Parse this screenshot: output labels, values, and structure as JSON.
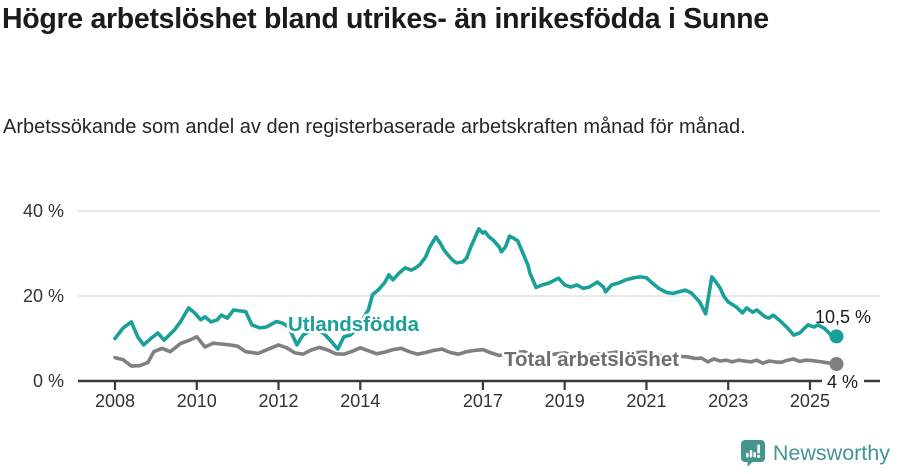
{
  "header": {
    "title": "Högre arbetslöshet bland utrikes- än inrikesfödda i Sunne",
    "subtitle": "Arbetssökande som andel av den registerbaserade arbetskraften månad för månad."
  },
  "footer": {
    "brand": "Newsworthy"
  },
  "colors": {
    "accent_teal": "#18a099",
    "series_gray": "#808083",
    "label_gray": "#6e6e71",
    "brand_teal": "#44948f",
    "axis": "#3a3a3a",
    "gridline": "#d9d9d9",
    "text": "#1b1b1b"
  },
  "chart_data": {
    "type": "line",
    "title": "Högre arbetslöshet bland utrikes- än inrikesfödda i Sunne",
    "subtitle": "Arbetssökande som andel av den registerbaserade arbetskraften månad för månad.",
    "unit": "%",
    "x_ticks": [
      2008,
      2010,
      2012,
      2014,
      2017,
      2019,
      2021,
      2023,
      2025
    ],
    "y_ticks": [
      0,
      20,
      40
    ],
    "y_tick_labels": [
      "0 %",
      "20 %",
      "40 %"
    ],
    "xlim": [
      2007.1,
      2026.7
    ],
    "ylim": [
      0,
      42
    ],
    "grid": "horizontal-only",
    "legend_position": "inline-labels",
    "series": [
      {
        "id": "utlandsfodda",
        "name": "Utlandsfödda",
        "color": "#18a099",
        "end_label": "10,5 %",
        "end_value": 10.5,
        "points": [
          [
            2008.0,
            10.0
          ],
          [
            2008.2,
            12.5
          ],
          [
            2008.4,
            13.9
          ],
          [
            2008.55,
            10.5
          ],
          [
            2008.7,
            8.5
          ],
          [
            2008.9,
            10.2
          ],
          [
            2009.05,
            11.3
          ],
          [
            2009.2,
            9.6
          ],
          [
            2009.45,
            12.0
          ],
          [
            2009.6,
            13.9
          ],
          [
            2009.8,
            17.2
          ],
          [
            2009.95,
            16.0
          ],
          [
            2010.1,
            14.4
          ],
          [
            2010.2,
            15.1
          ],
          [
            2010.35,
            13.9
          ],
          [
            2010.5,
            14.4
          ],
          [
            2010.6,
            15.5
          ],
          [
            2010.75,
            14.8
          ],
          [
            2010.9,
            16.7
          ],
          [
            2011.05,
            16.5
          ],
          [
            2011.2,
            16.3
          ],
          [
            2011.35,
            13.2
          ],
          [
            2011.55,
            12.5
          ],
          [
            2011.7,
            12.7
          ],
          [
            2011.95,
            14.0
          ],
          [
            2012.1,
            13.6
          ],
          [
            2012.25,
            12.7
          ],
          [
            2012.45,
            8.5
          ],
          [
            2012.6,
            10.8
          ],
          [
            2012.75,
            11.6
          ],
          [
            2012.9,
            12.0
          ],
          [
            2013.1,
            11.3
          ],
          [
            2013.3,
            9.2
          ],
          [
            2013.45,
            7.5
          ],
          [
            2013.6,
            10.4
          ],
          [
            2013.75,
            10.8
          ],
          [
            2013.9,
            12.0
          ],
          [
            2014.05,
            14.4
          ],
          [
            2014.2,
            16.8
          ],
          [
            2014.3,
            20.3
          ],
          [
            2014.45,
            21.5
          ],
          [
            2014.6,
            23.2
          ],
          [
            2014.7,
            25.0
          ],
          [
            2014.8,
            23.8
          ],
          [
            2014.95,
            25.4
          ],
          [
            2015.1,
            26.6
          ],
          [
            2015.25,
            26.1
          ],
          [
            2015.35,
            26.6
          ],
          [
            2015.45,
            27.3
          ],
          [
            2015.6,
            29.2
          ],
          [
            2015.7,
            31.5
          ],
          [
            2015.85,
            33.9
          ],
          [
            2015.95,
            32.5
          ],
          [
            2016.05,
            30.8
          ],
          [
            2016.15,
            29.6
          ],
          [
            2016.25,
            28.5
          ],
          [
            2016.35,
            27.8
          ],
          [
            2016.5,
            28.0
          ],
          [
            2016.6,
            28.9
          ],
          [
            2016.7,
            31.5
          ],
          [
            2016.8,
            33.6
          ],
          [
            2016.9,
            35.8
          ],
          [
            2017.0,
            34.8
          ],
          [
            2017.05,
            35.1
          ],
          [
            2017.15,
            33.9
          ],
          [
            2017.25,
            33.2
          ],
          [
            2017.4,
            31.5
          ],
          [
            2017.45,
            30.4
          ],
          [
            2017.55,
            31.5
          ],
          [
            2017.65,
            34.1
          ],
          [
            2017.75,
            33.6
          ],
          [
            2017.85,
            33.0
          ],
          [
            2018.0,
            29.6
          ],
          [
            2018.1,
            27.3
          ],
          [
            2018.15,
            25.4
          ],
          [
            2018.3,
            22.0
          ],
          [
            2018.45,
            22.6
          ],
          [
            2018.6,
            23.0
          ],
          [
            2018.85,
            24.2
          ],
          [
            2019.0,
            22.6
          ],
          [
            2019.15,
            22.1
          ],
          [
            2019.3,
            22.6
          ],
          [
            2019.45,
            21.8
          ],
          [
            2019.6,
            22.1
          ],
          [
            2019.8,
            23.3
          ],
          [
            2019.95,
            22.1
          ],
          [
            2020.0,
            21.0
          ],
          [
            2020.15,
            22.6
          ],
          [
            2020.3,
            23.0
          ],
          [
            2020.5,
            23.8
          ],
          [
            2020.7,
            24.3
          ],
          [
            2020.85,
            24.5
          ],
          [
            2021.0,
            24.3
          ],
          [
            2021.15,
            23.0
          ],
          [
            2021.3,
            21.8
          ],
          [
            2021.5,
            20.8
          ],
          [
            2021.65,
            20.6
          ],
          [
            2021.8,
            21.0
          ],
          [
            2021.95,
            21.4
          ],
          [
            2022.1,
            20.7
          ],
          [
            2022.3,
            18.6
          ],
          [
            2022.45,
            15.8
          ],
          [
            2022.6,
            24.5
          ],
          [
            2022.7,
            23.3
          ],
          [
            2022.8,
            21.9
          ],
          [
            2022.9,
            19.8
          ],
          [
            2023.0,
            18.6
          ],
          [
            2023.2,
            17.4
          ],
          [
            2023.35,
            16.0
          ],
          [
            2023.45,
            17.2
          ],
          [
            2023.6,
            16.2
          ],
          [
            2023.7,
            16.7
          ],
          [
            2023.9,
            15.1
          ],
          [
            2024.0,
            14.8
          ],
          [
            2024.1,
            15.5
          ],
          [
            2024.3,
            13.9
          ],
          [
            2024.45,
            12.5
          ],
          [
            2024.6,
            10.8
          ],
          [
            2024.75,
            11.3
          ],
          [
            2024.95,
            13.2
          ],
          [
            2025.1,
            12.7
          ],
          [
            2025.2,
            13.2
          ],
          [
            2025.35,
            12.4
          ],
          [
            2025.5,
            11.0
          ],
          [
            2025.65,
            10.5
          ]
        ]
      },
      {
        "id": "total",
        "name": "Total arbetslöshet",
        "color": "#808083",
        "end_label": "4 %",
        "end_value": 4.0,
        "points": [
          [
            2008.0,
            5.5
          ],
          [
            2008.2,
            5.0
          ],
          [
            2008.4,
            3.5
          ],
          [
            2008.6,
            3.6
          ],
          [
            2008.8,
            4.3
          ],
          [
            2008.95,
            6.9
          ],
          [
            2009.15,
            7.7
          ],
          [
            2009.35,
            6.9
          ],
          [
            2009.6,
            8.8
          ],
          [
            2009.8,
            9.5
          ],
          [
            2010.0,
            10.4
          ],
          [
            2010.2,
            8.0
          ],
          [
            2010.4,
            8.9
          ],
          [
            2010.6,
            8.7
          ],
          [
            2010.8,
            8.5
          ],
          [
            2011.0,
            8.2
          ],
          [
            2011.2,
            6.9
          ],
          [
            2011.5,
            6.5
          ],
          [
            2011.8,
            7.7
          ],
          [
            2012.0,
            8.5
          ],
          [
            2012.2,
            7.8
          ],
          [
            2012.4,
            6.6
          ],
          [
            2012.6,
            6.3
          ],
          [
            2012.8,
            7.3
          ],
          [
            2013.0,
            7.9
          ],
          [
            2013.2,
            7.3
          ],
          [
            2013.4,
            6.4
          ],
          [
            2013.6,
            6.3
          ],
          [
            2013.8,
            7.0
          ],
          [
            2014.0,
            7.8
          ],
          [
            2014.2,
            7.1
          ],
          [
            2014.4,
            6.4
          ],
          [
            2014.6,
            6.8
          ],
          [
            2014.8,
            7.4
          ],
          [
            2015.0,
            7.7
          ],
          [
            2015.2,
            6.9
          ],
          [
            2015.4,
            6.3
          ],
          [
            2015.6,
            6.7
          ],
          [
            2015.8,
            7.2
          ],
          [
            2016.0,
            7.5
          ],
          [
            2016.2,
            6.7
          ],
          [
            2016.4,
            6.3
          ],
          [
            2016.6,
            6.9
          ],
          [
            2016.8,
            7.2
          ],
          [
            2017.0,
            7.4
          ],
          [
            2017.2,
            6.6
          ],
          [
            2017.4,
            6.0
          ],
          [
            2017.6,
            6.4
          ],
          [
            2017.8,
            6.7
          ],
          [
            2018.0,
            6.9
          ],
          [
            2018.2,
            6.2
          ],
          [
            2018.4,
            5.8
          ],
          [
            2018.6,
            6.1
          ],
          [
            2018.8,
            6.4
          ],
          [
            2019.0,
            6.6
          ],
          [
            2019.2,
            6.0
          ],
          [
            2019.4,
            5.7
          ],
          [
            2019.6,
            6.0
          ],
          [
            2019.8,
            6.3
          ],
          [
            2020.0,
            6.5
          ],
          [
            2020.2,
            6.7
          ],
          [
            2020.4,
            7.0
          ],
          [
            2020.6,
            6.8
          ],
          [
            2020.8,
            6.7
          ],
          [
            2021.0,
            6.8
          ],
          [
            2021.2,
            6.3
          ],
          [
            2021.4,
            5.9
          ],
          [
            2021.6,
            5.7
          ],
          [
            2021.8,
            5.8
          ],
          [
            2022.0,
            5.7
          ],
          [
            2022.2,
            5.3
          ],
          [
            2022.35,
            5.4
          ],
          [
            2022.5,
            4.5
          ],
          [
            2022.65,
            5.2
          ],
          [
            2022.8,
            4.7
          ],
          [
            2022.95,
            4.9
          ],
          [
            2023.1,
            4.5
          ],
          [
            2023.25,
            4.9
          ],
          [
            2023.4,
            4.7
          ],
          [
            2023.55,
            4.5
          ],
          [
            2023.7,
            4.9
          ],
          [
            2023.85,
            4.2
          ],
          [
            2024.0,
            4.7
          ],
          [
            2024.15,
            4.5
          ],
          [
            2024.3,
            4.4
          ],
          [
            2024.45,
            4.9
          ],
          [
            2024.6,
            5.2
          ],
          [
            2024.75,
            4.6
          ],
          [
            2024.9,
            4.9
          ],
          [
            2025.05,
            4.8
          ],
          [
            2025.2,
            4.6
          ],
          [
            2025.35,
            4.4
          ],
          [
            2025.5,
            4.2
          ],
          [
            2025.65,
            4.0
          ]
        ]
      }
    ]
  }
}
